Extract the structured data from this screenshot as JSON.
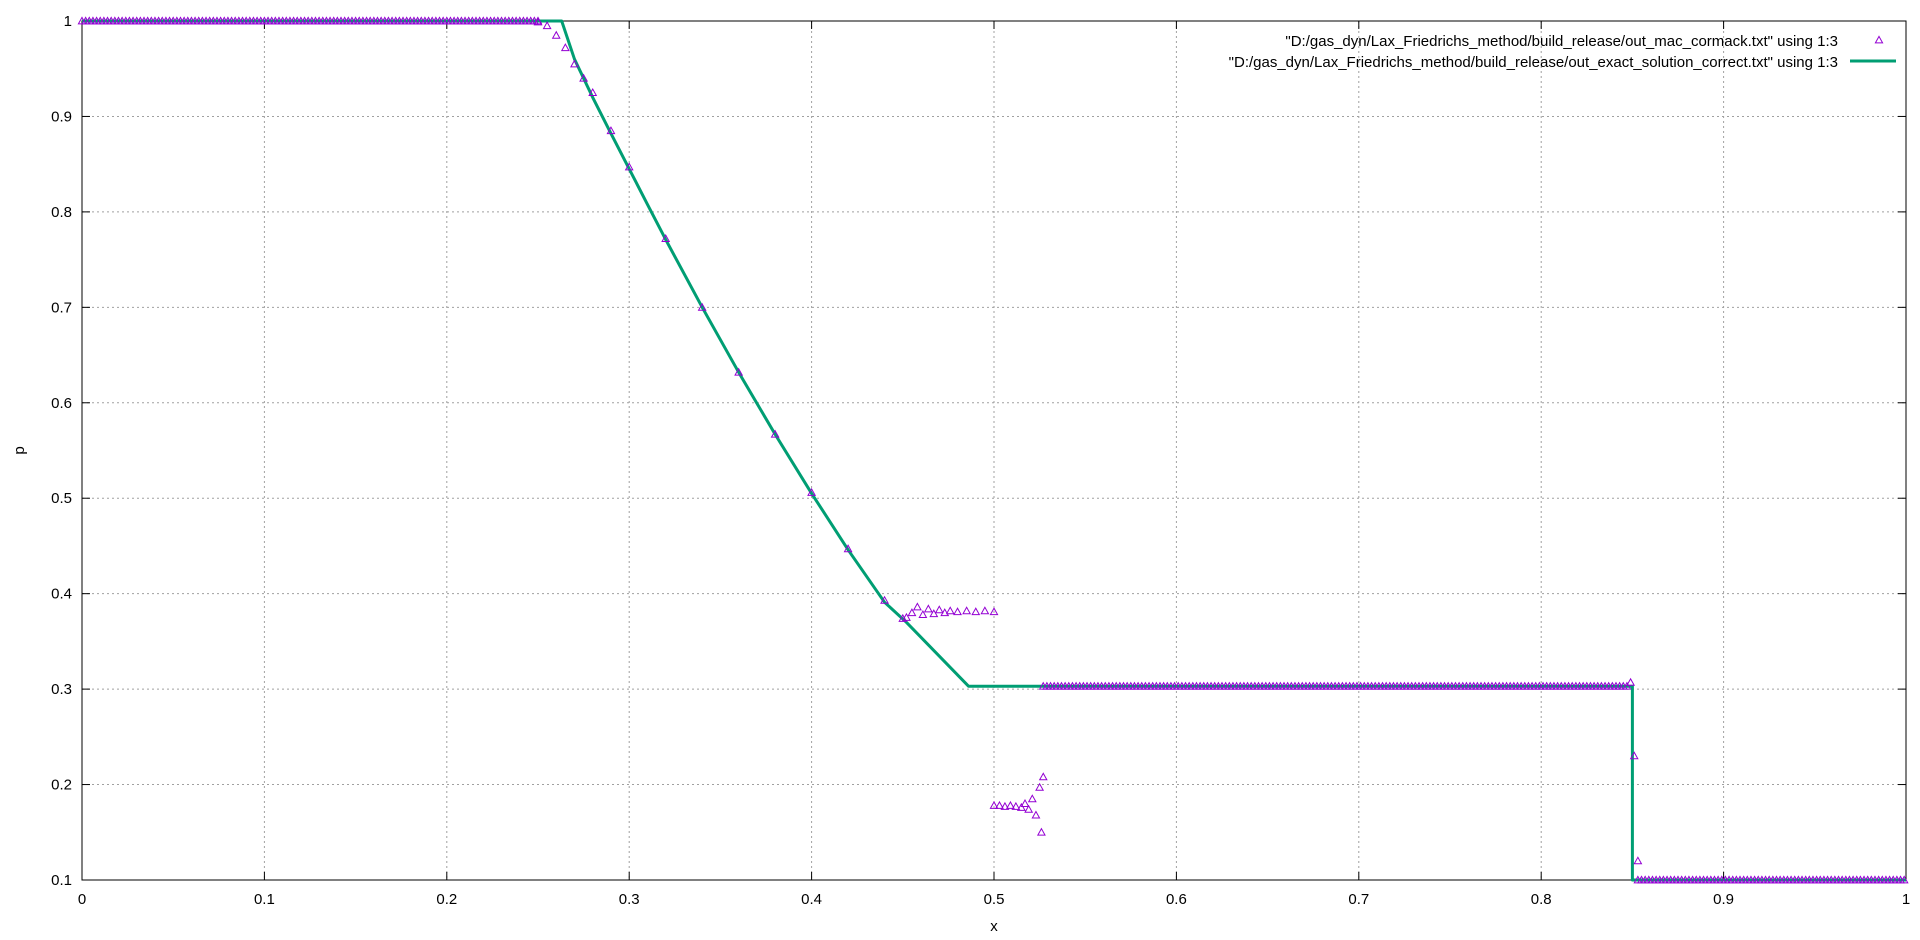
{
  "chart_data": {
    "type": "scatter",
    "xlabel": "x",
    "ylabel": "p",
    "xlim": [
      0,
      1
    ],
    "ylim": [
      0.1,
      1
    ],
    "x_ticks": [
      "0",
      "0.1",
      "0.2",
      "0.3",
      "0.4",
      "0.5",
      "0.6",
      "0.7",
      "0.8",
      "0.9",
      "1"
    ],
    "y_ticks": [
      "0.1",
      "0.2",
      "0.3",
      "0.4",
      "0.5",
      "0.6",
      "0.7",
      "0.8",
      "0.9",
      "1"
    ],
    "grid": true,
    "legend_position": "top-right",
    "series": [
      {
        "name": "\"D:/gas_dyn/Lax_Friedrichs_method/build_release/out_mac_cormack.txt\" using 1:3",
        "style": "points-triangle",
        "color": "#9400d3",
        "segments": [
          {
            "from": 0.0,
            "to": 0.25,
            "y": 1.0
          },
          {
            "x": [
              0.25,
              0.255,
              0.26,
              0.265,
              0.27,
              0.275,
              0.28,
              0.29,
              0.3,
              0.32,
              0.34,
              0.36,
              0.38,
              0.4,
              0.42,
              0.44,
              0.45
            ],
            "y": [
              0.999,
              0.995,
              0.985,
              0.972,
              0.955,
              0.94,
              0.925,
              0.885,
              0.847,
              0.772,
              0.7,
              0.632,
              0.567,
              0.506,
              0.447,
              0.393,
              0.374
            ]
          },
          {
            "x": [
              0.452,
              0.455,
              0.458,
              0.461,
              0.464,
              0.467,
              0.47,
              0.473,
              0.476,
              0.48,
              0.485,
              0.49,
              0.495,
              0.5
            ],
            "y": [
              0.375,
              0.38,
              0.386,
              0.378,
              0.384,
              0.379,
              0.383,
              0.38,
              0.382,
              0.381,
              0.382,
              0.381,
              0.382,
              0.381
            ]
          },
          {
            "x": [
              0.5,
              0.503,
              0.506,
              0.509,
              0.512,
              0.515,
              0.517,
              0.519,
              0.521,
              0.523,
              0.525,
              0.526,
              0.527
            ],
            "y": [
              0.178,
              0.178,
              0.177,
              0.178,
              0.177,
              0.176,
              0.18,
              0.174,
              0.185,
              0.168,
              0.197,
              0.15,
              0.208
            ]
          },
          {
            "from": 0.527,
            "to": 0.848,
            "y": 0.303
          },
          {
            "x": [
              0.849,
              0.851,
              0.853
            ],
            "y": [
              0.307,
              0.23,
              0.12
            ]
          },
          {
            "from": 0.853,
            "to": 1.0,
            "y": 0.1
          }
        ]
      },
      {
        "name": "\"D:/gas_dyn/Lax_Friedrichs_method/build_release/out_exact_solution_correct.txt\" using 1:3",
        "style": "line",
        "color": "#009e73",
        "x": [
          0.0,
          0.263,
          0.27,
          0.28,
          0.29,
          0.3,
          0.31,
          0.32,
          0.34,
          0.36,
          0.38,
          0.4,
          0.42,
          0.44,
          0.452,
          0.486,
          0.527,
          0.85,
          0.85,
          1.0
        ],
        "y": [
          1.0,
          1.0,
          0.96,
          0.92,
          0.882,
          0.845,
          0.808,
          0.771,
          0.7,
          0.632,
          0.567,
          0.505,
          0.446,
          0.391,
          0.37,
          0.303,
          0.303,
          0.303,
          0.1,
          0.1
        ]
      }
    ]
  }
}
